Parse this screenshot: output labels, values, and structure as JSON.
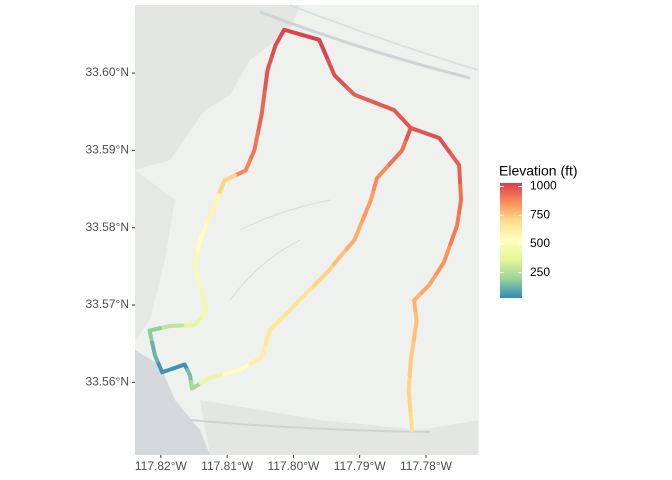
{
  "chart_data": {
    "type": "track",
    "x": [
      -117.7821,
      -117.7826,
      -117.7823,
      -117.7814,
      -117.7818,
      -117.7795,
      -117.7773,
      -117.7753,
      -117.7747,
      -117.775,
      -117.778,
      -117.7823,
      -117.7848,
      -117.7908,
      -117.7938,
      -117.7961,
      -117.8014,
      -117.8027,
      -117.8039,
      -117.8048,
      -117.8059,
      -117.8072,
      -117.8104,
      -117.8122,
      -117.8141,
      -117.8149,
      -117.8131,
      -117.8149,
      -117.8186,
      -117.8217,
      -117.8209,
      -117.8198,
      -117.8164,
      -117.8156,
      -117.8153,
      -117.8126,
      -117.8081,
      -117.8048,
      -117.8036,
      -117.7991,
      -117.7946,
      -117.7931,
      -117.7908,
      -117.7883,
      -117.7874,
      -117.7836,
      -117.7823
    ],
    "y": [
      33.5538,
      33.559,
      33.5628,
      33.568,
      33.5706,
      33.5726,
      33.5755,
      33.5803,
      33.5836,
      33.5881,
      33.5916,
      33.5929,
      33.5952,
      33.5972,
      33.5997,
      33.6043,
      33.6056,
      33.6036,
      33.6004,
      33.5946,
      33.59,
      33.5874,
      33.5861,
      33.5823,
      33.5784,
      33.5751,
      33.5693,
      33.5674,
      33.5673,
      33.5667,
      33.5635,
      33.5613,
      33.5623,
      33.5609,
      33.5592,
      33.5606,
      33.5616,
      33.5632,
      33.5667,
      33.5706,
      33.5745,
      33.5761,
      33.5784,
      33.5836,
      33.5864,
      33.59,
      33.5929
    ],
    "values": [
      700,
      720,
      740,
      760,
      790,
      820,
      850,
      900,
      920,
      960,
      990,
      980,
      970,
      960,
      990,
      1020,
      1010,
      1000,
      980,
      950,
      910,
      880,
      720,
      580,
      520,
      480,
      450,
      380,
      280,
      180,
      120,
      60,
      50,
      140,
      220,
      400,
      520,
      620,
      660,
      680,
      720,
      760,
      800,
      830,
      870,
      920,
      980
    ],
    "xlim": [
      -117.8239,
      -117.772
    ],
    "ylim": [
      33.5506,
      33.6088
    ],
    "xticks": [
      {
        "value": -117.82,
        "label": "117.82°W"
      },
      {
        "value": -117.81,
        "label": "117.81°W"
      },
      {
        "value": -117.8,
        "label": "117.80°W"
      },
      {
        "value": -117.79,
        "label": "117.79°W"
      },
      {
        "value": -117.78,
        "label": "117.78°W"
      }
    ],
    "yticks": [
      {
        "value": 33.56,
        "label": "33.56°N"
      },
      {
        "value": 33.57,
        "label": "33.57°N"
      },
      {
        "value": 33.58,
        "label": "33.58°N"
      },
      {
        "value": 33.59,
        "label": "33.59°N"
      },
      {
        "value": 33.6,
        "label": "33.60°N"
      }
    ],
    "legend_title": "Elevation (ft)",
    "clim": [
      30,
      1030
    ],
    "cticks": [
      250,
      500,
      750,
      1000
    ],
    "palette": [
      "#3288bd",
      "#99d594",
      "#e6f598",
      "#ffffbf",
      "#fee08b",
      "#fc8d59",
      "#d53e4f"
    ]
  }
}
